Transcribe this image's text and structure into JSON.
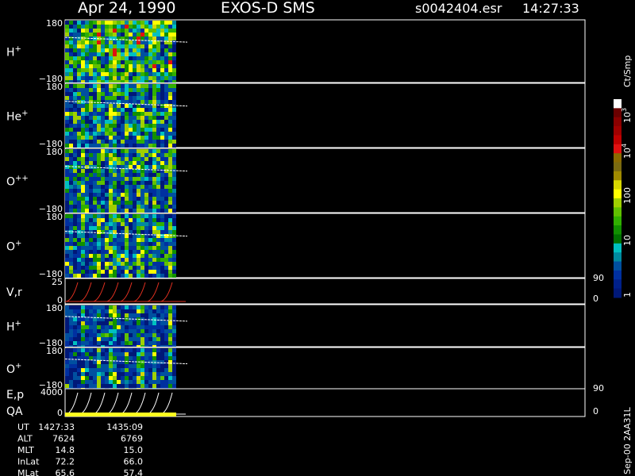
{
  "header": {
    "date": "Apr 24, 1990",
    "instrument": "EXOS-D SMS",
    "file": "s0042404.esr",
    "time": "14:27:33"
  },
  "panels": [
    {
      "label": "H",
      "sup": "+",
      "left_ticks": [
        "180",
        "−180"
      ]
    },
    {
      "label": "He",
      "sup": "+",
      "left_ticks": [
        "180",
        "−180"
      ]
    },
    {
      "label": "O",
      "sup": "++",
      "left_ticks": [
        "180",
        "−180"
      ]
    },
    {
      "label": "O",
      "sup": "+",
      "left_ticks": [
        "180",
        "−180"
      ]
    },
    {
      "label": "V,r",
      "left_ticks": [
        "25",
        "0"
      ],
      "right_ticks": [
        "90",
        "0"
      ]
    },
    {
      "label": "H",
      "sup": "+",
      "left_ticks": [
        "180",
        "−180"
      ]
    },
    {
      "label": "O",
      "sup": "+",
      "left_ticks": [
        "180",
        "−180"
      ]
    },
    {
      "label": "E,p",
      "label2": "QA",
      "left_ticks": [
        "4000",
        "0"
      ],
      "right_ticks": [
        "90",
        "0"
      ]
    }
  ],
  "colorbar": {
    "unit": "Ct/Smp",
    "ticks": [
      {
        "label": "10",
        "sup": "4"
      },
      {
        "label": "10",
        "sup": "3"
      },
      {
        "label": "100"
      },
      {
        "label": "10"
      },
      {
        "label": "1"
      }
    ],
    "colors": [
      "#ffffff",
      "#6a0000",
      "#8a0000",
      "#a00000",
      "#c00000",
      "#e01010",
      "#8a6a00",
      "#7a6a10",
      "#a08a00",
      "#d8d800",
      "#ffff00",
      "#a0d000",
      "#60c000",
      "#30b000",
      "#109000",
      "#007000",
      "#00c0c0",
      "#008aa0",
      "#0050a0",
      "#0030a0",
      "#00208a",
      "#001878"
    ]
  },
  "footer": {
    "rows": [
      [
        "UT",
        "1427:33",
        "1435:09"
      ],
      [
        "ALT",
        "7624",
        "6769"
      ],
      [
        "MLT",
        "14.8",
        "15.0"
      ],
      [
        "InLat",
        "72.2",
        "66.0"
      ],
      [
        "MLat",
        "65.6",
        "57.4"
      ]
    ]
  },
  "side_note": "Sep-00  2AA31L"
}
